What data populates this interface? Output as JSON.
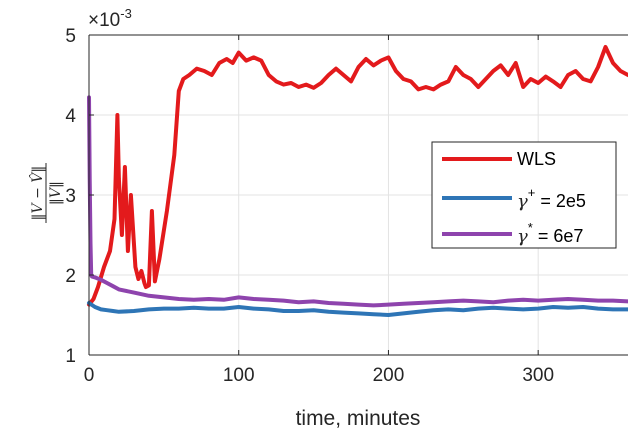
{
  "chart_data": {
    "type": "line",
    "xlabel": "time, minutes",
    "ylabel_expression": "||V − V̂|| / ||V||",
    "y_exponent": "×10-3",
    "xlim": [
      0,
      360
    ],
    "ylim": [
      1,
      5
    ],
    "x_ticks": [
      0,
      100,
      200,
      300
    ],
    "y_ticks": [
      1,
      2,
      3,
      4,
      5
    ],
    "grid": true,
    "legend_position": "right-middle",
    "series": [
      {
        "name": "WLS",
        "color": "#e31a1c",
        "x": [
          0,
          3,
          6,
          10,
          14,
          17,
          19,
          20,
          22,
          24,
          26,
          28,
          31,
          33,
          35,
          37,
          38,
          40,
          42,
          44,
          47,
          52,
          57,
          60,
          63,
          67,
          72,
          77,
          82,
          87,
          92,
          96,
          100,
          105,
          110,
          115,
          120,
          125,
          130,
          135,
          140,
          145,
          150,
          155,
          160,
          165,
          170,
          175,
          180,
          185,
          190,
          195,
          200,
          205,
          210,
          215,
          220,
          225,
          230,
          235,
          240,
          245,
          250,
          255,
          260,
          265,
          270,
          275,
          280,
          285,
          290,
          295,
          300,
          305,
          310,
          315,
          320,
          325,
          330,
          335,
          340,
          345,
          350,
          355,
          360
        ],
        "values": [
          1.63,
          1.7,
          1.85,
          2.1,
          2.3,
          2.7,
          4.0,
          3.2,
          2.5,
          3.35,
          2.3,
          3.0,
          2.1,
          1.95,
          2.05,
          1.9,
          1.85,
          1.87,
          2.8,
          1.92,
          2.2,
          2.8,
          3.5,
          4.3,
          4.45,
          4.5,
          4.58,
          4.55,
          4.5,
          4.65,
          4.7,
          4.65,
          4.78,
          4.68,
          4.72,
          4.68,
          4.5,
          4.42,
          4.38,
          4.4,
          4.35,
          4.38,
          4.34,
          4.4,
          4.5,
          4.58,
          4.5,
          4.42,
          4.6,
          4.7,
          4.62,
          4.68,
          4.72,
          4.55,
          4.45,
          4.42,
          4.32,
          4.35,
          4.32,
          4.38,
          4.42,
          4.6,
          4.5,
          4.45,
          4.35,
          4.45,
          4.55,
          4.62,
          4.5,
          4.65,
          4.35,
          4.45,
          4.4,
          4.48,
          4.42,
          4.35,
          4.5,
          4.55,
          4.45,
          4.42,
          4.6,
          4.85,
          4.65,
          4.55,
          4.5
        ]
      },
      {
        "name_prefix": "γ",
        "name_superscript": "+",
        "name_suffix": " = 2e5",
        "color": "#2e75b6",
        "x": [
          0,
          4,
          8,
          12,
          16,
          20,
          30,
          40,
          50,
          60,
          70,
          80,
          90,
          100,
          110,
          120,
          130,
          140,
          150,
          160,
          170,
          180,
          190,
          200,
          210,
          220,
          230,
          240,
          250,
          260,
          270,
          280,
          290,
          300,
          310,
          320,
          330,
          340,
          350,
          360
        ],
        "values": [
          1.65,
          1.6,
          1.57,
          1.56,
          1.55,
          1.54,
          1.55,
          1.57,
          1.58,
          1.58,
          1.59,
          1.58,
          1.58,
          1.6,
          1.58,
          1.57,
          1.55,
          1.55,
          1.56,
          1.54,
          1.53,
          1.52,
          1.51,
          1.5,
          1.52,
          1.54,
          1.56,
          1.57,
          1.56,
          1.58,
          1.59,
          1.58,
          1.57,
          1.58,
          1.6,
          1.59,
          1.6,
          1.58,
          1.57,
          1.57
        ]
      },
      {
        "name_prefix": "γ",
        "name_superscript": "*",
        "name_suffix": " = 6e7",
        "color": "#8e44ad",
        "x": [
          0,
          0.5,
          1,
          1.5,
          2,
          4,
          8,
          12,
          16,
          20,
          30,
          40,
          50,
          60,
          70,
          80,
          90,
          100,
          110,
          120,
          130,
          140,
          150,
          160,
          170,
          180,
          190,
          200,
          210,
          220,
          230,
          240,
          250,
          260,
          270,
          280,
          290,
          300,
          310,
          320,
          330,
          340,
          350,
          360
        ],
        "values": [
          4.22,
          3.2,
          2.4,
          2.0,
          1.98,
          1.97,
          1.94,
          1.9,
          1.86,
          1.82,
          1.78,
          1.74,
          1.72,
          1.7,
          1.69,
          1.7,
          1.69,
          1.72,
          1.7,
          1.69,
          1.68,
          1.66,
          1.67,
          1.65,
          1.64,
          1.63,
          1.62,
          1.63,
          1.64,
          1.65,
          1.66,
          1.67,
          1.68,
          1.67,
          1.66,
          1.68,
          1.69,
          1.68,
          1.69,
          1.7,
          1.69,
          1.68,
          1.68,
          1.67
        ]
      }
    ]
  }
}
